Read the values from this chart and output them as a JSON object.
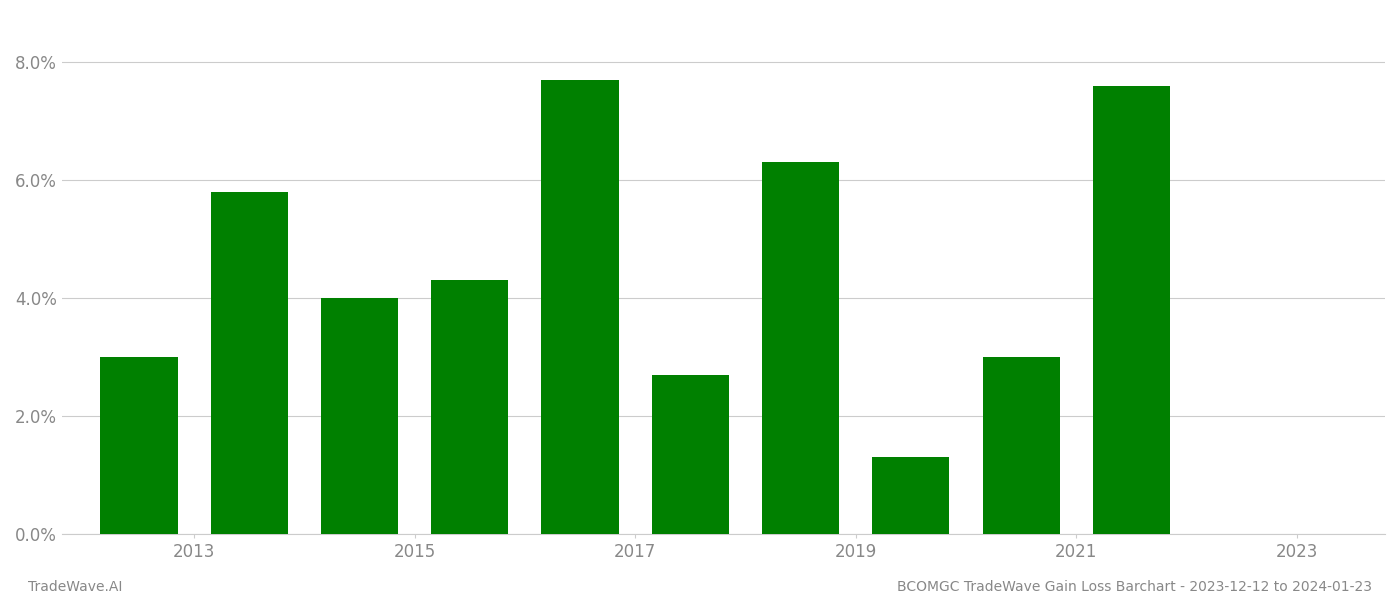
{
  "years": [
    2013,
    2014,
    2015,
    2016,
    2017,
    2018,
    2019,
    2020,
    2021,
    2022
  ],
  "values": [
    0.03,
    0.058,
    0.04,
    0.043,
    0.077,
    0.027,
    0.063,
    0.013,
    0.03,
    0.076
  ],
  "bar_color": "#008000",
  "background_color": "#ffffff",
  "ylim": [
    0,
    0.088
  ],
  "yticks": [
    0.0,
    0.02,
    0.04,
    0.06,
    0.08
  ],
  "xtick_labels": [
    "2013",
    "2015",
    "2017",
    "2019",
    "2021",
    "2023"
  ],
  "xtick_positions": [
    2013.5,
    2015.5,
    2017.5,
    2019.5,
    2021.5,
    2023.5
  ],
  "footer_left": "TradeWave.AI",
  "footer_right": "BCOMGC TradeWave Gain Loss Barchart - 2023-12-12 to 2024-01-23",
  "footer_fontsize": 10,
  "tick_label_color": "#888888",
  "grid_color": "#cccccc",
  "bar_width": 0.7
}
